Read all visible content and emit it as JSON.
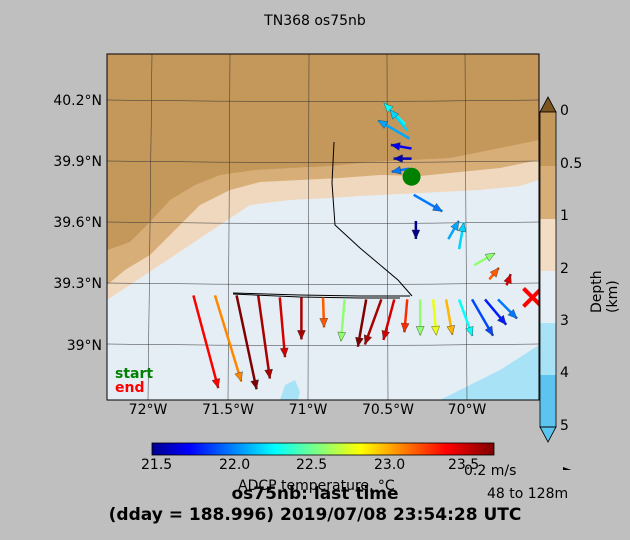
{
  "title": "TN368 os75nb",
  "chart_data": {
    "type": "map-vector",
    "lat_ticks": [
      "40.2°N",
      "39.9°N",
      "39.6°N",
      "39.3°N",
      "39°N"
    ],
    "lon_ticks": [
      "72°W",
      "71.5°W",
      "71°W",
      "70.5°W",
      "70°W"
    ],
    "lat_range": [
      38.73,
      40.45
    ],
    "lon_range": [
      -72.25,
      -70.25
    ],
    "depth_colorbar": {
      "label": "Depth (km)",
      "ticks": [
        "0",
        "0.5",
        "1",
        "2",
        "3",
        "4",
        "5"
      ],
      "colors": [
        "#7a5520",
        "#c4975a",
        "#dab788",
        "#f2dcc4",
        "#e6eef5",
        "#a8e2f7",
        "#5cc4ee"
      ]
    },
    "temperature_colorbar": {
      "label": "ADCP temperature, °C",
      "ticks": [
        "21.5",
        "22.0",
        "22.5",
        "23.0",
        "23.5"
      ],
      "range": [
        21.5,
        23.7
      ]
    },
    "vectors_north": [
      {
        "lon": -70.87,
        "lat": 40.1,
        "dir": 315,
        "len": 0.5,
        "temp": 22.3
      },
      {
        "lon": -70.86,
        "lat": 40.07,
        "dir": 320,
        "len": 0.45,
        "temp": 22.2
      },
      {
        "lon": -70.85,
        "lat": 40.03,
        "dir": 300,
        "len": 0.6,
        "temp": 22.1
      },
      {
        "lon": -70.84,
        "lat": 39.98,
        "dir": 280,
        "len": 0.35,
        "temp": 21.7
      },
      {
        "lon": -70.84,
        "lat": 39.93,
        "dir": 270,
        "len": 0.3,
        "temp": 21.6
      },
      {
        "lon": -70.85,
        "lat": 39.88,
        "dir": 260,
        "len": 0.3,
        "temp": 22.0
      },
      {
        "lon": -70.83,
        "lat": 39.75,
        "dir": 120,
        "len": 0.55,
        "temp": 22.0
      },
      {
        "lon": -70.82,
        "lat": 39.62,
        "dir": 180,
        "len": 0.3,
        "temp": 21.5
      },
      {
        "lon": -70.67,
        "lat": 39.53,
        "dir": 30,
        "len": 0.35,
        "temp": 22.1
      },
      {
        "lon": -70.62,
        "lat": 39.48,
        "dir": 10,
        "len": 0.45,
        "temp": 22.2
      },
      {
        "lon": -70.55,
        "lat": 39.4,
        "dir": 60,
        "len": 0.4,
        "temp": 22.6
      },
      {
        "lon": -70.48,
        "lat": 39.33,
        "dir": 40,
        "len": 0.25,
        "temp": 23.2
      },
      {
        "lon": -70.4,
        "lat": 39.3,
        "dir": 20,
        "len": 0.2,
        "temp": 23.5
      }
    ],
    "vectors_south": [
      {
        "lon": -71.85,
        "lat": 39.25,
        "dir": 165,
        "len": 1.6,
        "temp": 23.4
      },
      {
        "lon": -71.75,
        "lat": 39.25,
        "dir": 163,
        "len": 1.5,
        "temp": 23.1
      },
      {
        "lon": -71.65,
        "lat": 39.25,
        "dir": 168,
        "len": 1.6,
        "temp": 23.7
      },
      {
        "lon": -71.55,
        "lat": 39.25,
        "dir": 172,
        "len": 1.4,
        "temp": 23.6
      },
      {
        "lon": -71.45,
        "lat": 39.24,
        "dir": 175,
        "len": 1.0,
        "temp": 23.5
      },
      {
        "lon": -71.35,
        "lat": 39.24,
        "dir": 180,
        "len": 0.7,
        "temp": 23.6
      },
      {
        "lon": -71.25,
        "lat": 39.24,
        "dir": 178,
        "len": 0.5,
        "temp": 23.2
      },
      {
        "lon": -71.15,
        "lat": 39.23,
        "dir": 185,
        "len": 0.7,
        "temp": 22.6
      },
      {
        "lon": -71.05,
        "lat": 39.23,
        "dir": 190,
        "len": 0.8,
        "temp": 23.7
      },
      {
        "lon": -70.98,
        "lat": 39.23,
        "dir": 200,
        "len": 0.8,
        "temp": 23.6
      },
      {
        "lon": -70.92,
        "lat": 39.23,
        "dir": 195,
        "len": 0.7,
        "temp": 23.5
      },
      {
        "lon": -70.86,
        "lat": 39.23,
        "dir": 185,
        "len": 0.55,
        "temp": 23.3
      },
      {
        "lon": -70.8,
        "lat": 39.23,
        "dir": 180,
        "len": 0.6,
        "temp": 22.6
      },
      {
        "lon": -70.74,
        "lat": 39.23,
        "dir": 175,
        "len": 0.6,
        "temp": 22.8
      },
      {
        "lon": -70.68,
        "lat": 39.23,
        "dir": 170,
        "len": 0.6,
        "temp": 23.0
      },
      {
        "lon": -70.62,
        "lat": 39.23,
        "dir": 160,
        "len": 0.65,
        "temp": 22.3
      },
      {
        "lon": -70.56,
        "lat": 39.23,
        "dir": 150,
        "len": 0.7,
        "temp": 21.9
      },
      {
        "lon": -70.5,
        "lat": 39.23,
        "dir": 140,
        "len": 0.55,
        "temp": 21.8
      },
      {
        "lon": -70.44,
        "lat": 39.23,
        "dir": 135,
        "len": 0.45,
        "temp": 22.0
      }
    ],
    "start": {
      "lon": -70.84,
      "lat": 39.84
    },
    "end": {
      "lon": -70.28,
      "lat": 39.24
    }
  },
  "legend": {
    "start": "start",
    "end": "end"
  },
  "scale": {
    "label": "0.2 m/s",
    "depth_range": "48 to 128m"
  },
  "footer": {
    "line1": "os75nb: last time",
    "line2": "(dday = 188.996) 2019/07/08 23:54:28 UTC"
  }
}
